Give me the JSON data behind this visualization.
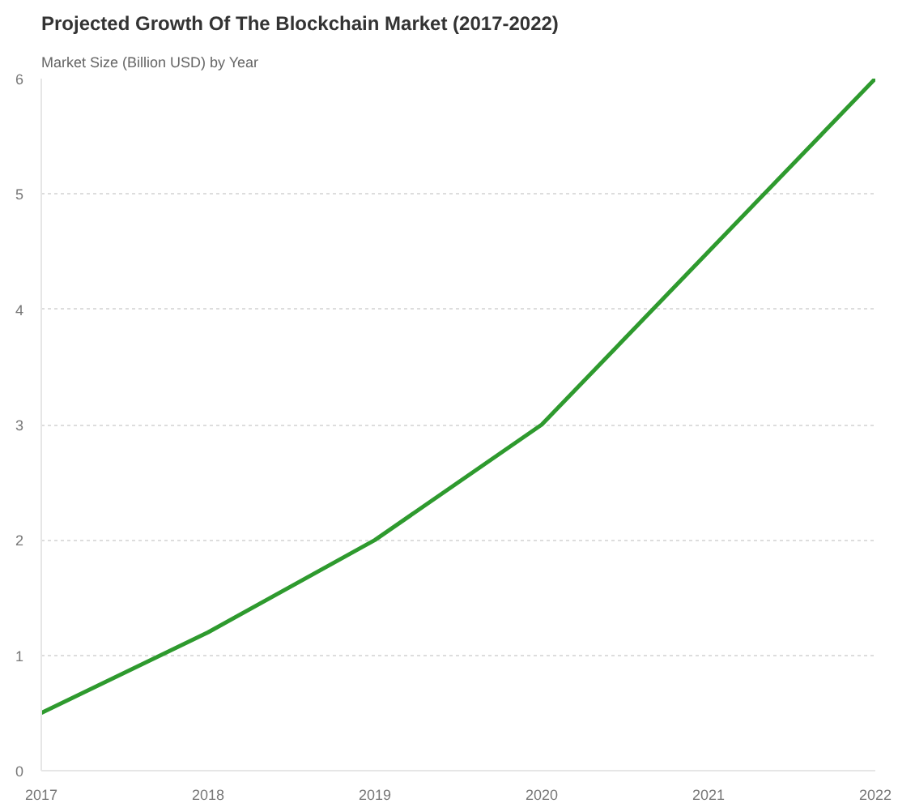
{
  "chart_data": {
    "type": "line",
    "title": "Projected Growth Of The Blockchain Market (2017-2022)",
    "subtitle": "Market Size (Billion USD) by Year",
    "x": [
      2017,
      2018,
      2019,
      2020,
      2021,
      2022
    ],
    "series": [
      {
        "color": "#2e9a2e",
        "values": [
          0.5,
          1.2,
          2.0,
          3.0,
          4.5,
          6.0
        ]
      }
    ],
    "xlim": [
      2017,
      2022
    ],
    "xticks": [
      2017,
      2018,
      2019,
      2020,
      2021,
      2022
    ],
    "ylim": [
      0,
      6
    ],
    "yticks": [
      0,
      1,
      2,
      3,
      4,
      5,
      6
    ],
    "grid": "y",
    "line_style": "solid"
  }
}
